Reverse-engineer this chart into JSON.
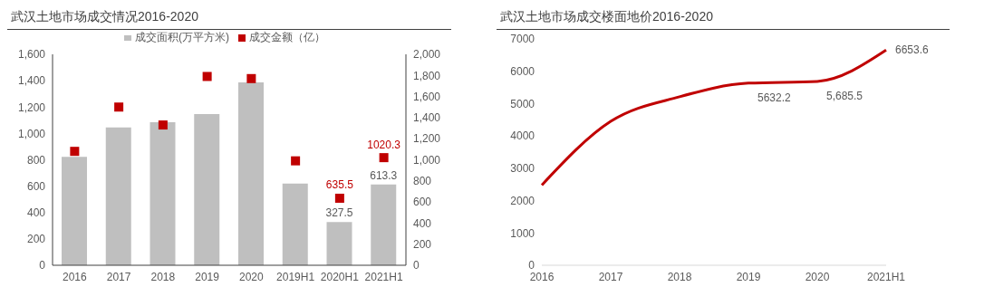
{
  "chart_data": [
    {
      "type": "bar",
      "title": "武汉土地市场成交情况2016-2020",
      "categories": [
        "2016",
        "2017",
        "2018",
        "2019",
        "2020",
        "2019H1",
        "2020H1",
        "2021H1"
      ],
      "series": [
        {
          "name": "成交面积(万平方米)",
          "color": "#bfbfbf",
          "values": [
            822,
            1045,
            1085,
            1146,
            1387,
            620,
            327.5,
            613.3
          ],
          "value_labels": [
            null,
            null,
            null,
            null,
            null,
            null,
            "327.5",
            "613.3"
          ]
        },
        {
          "name": "成交金额（亿）",
          "type": "scatter",
          "axis": "y2",
          "marker": "square",
          "color": "#c00000",
          "values": [
            1080,
            1500,
            1330,
            1790,
            1770,
            990,
            635.5,
            1020.3
          ],
          "value_labels": [
            null,
            null,
            null,
            null,
            null,
            null,
            "635.5",
            "1020.3"
          ]
        }
      ],
      "ylim": [
        0,
        1600
      ],
      "yticks": [
        0,
        {
          "value": 200,
          "label": "200"
        },
        400,
        600,
        800,
        {
          "value": 1000,
          "label": "1,000"
        },
        {
          "value": 1200,
          "label": "1,200"
        },
        {
          "value": 1400,
          "label": "1,400"
        },
        {
          "value": 1600,
          "label": "1,600"
        }
      ],
      "y2lim": [
        0,
        2000
      ],
      "y2ticks": [
        0,
        200,
        400,
        600,
        800,
        {
          "value": 1000,
          "label": "1,000"
        },
        {
          "value": 1200,
          "label": "1,200"
        },
        {
          "value": 1400,
          "label": "1,400"
        },
        {
          "value": 1600,
          "label": "1,600"
        },
        {
          "value": 1800,
          "label": "1,800"
        },
        {
          "value": 2000,
          "label": "2,000"
        }
      ],
      "legend": "top",
      "grid": false
    },
    {
      "type": "line",
      "title": "武汉土地市场成交楼面地价2016-2020",
      "categories": [
        "2016",
        "2017",
        "2018",
        "2019",
        "2020",
        "2021H1"
      ],
      "series": [
        {
          "color": "#c00000",
          "values": [
            2480,
            4450,
            5210,
            5632.2,
            5685.5,
            6653.6
          ],
          "value_labels": [
            null,
            null,
            null,
            "5632.2",
            "5,685.5",
            "6653.6"
          ]
        }
      ],
      "ylim": [
        0,
        7000
      ],
      "yticks": [
        0,
        1000,
        2000,
        3000,
        4000,
        5000,
        6000,
        7000
      ],
      "marker": "none",
      "line_style": "solid",
      "legend": false,
      "grid": false
    }
  ]
}
